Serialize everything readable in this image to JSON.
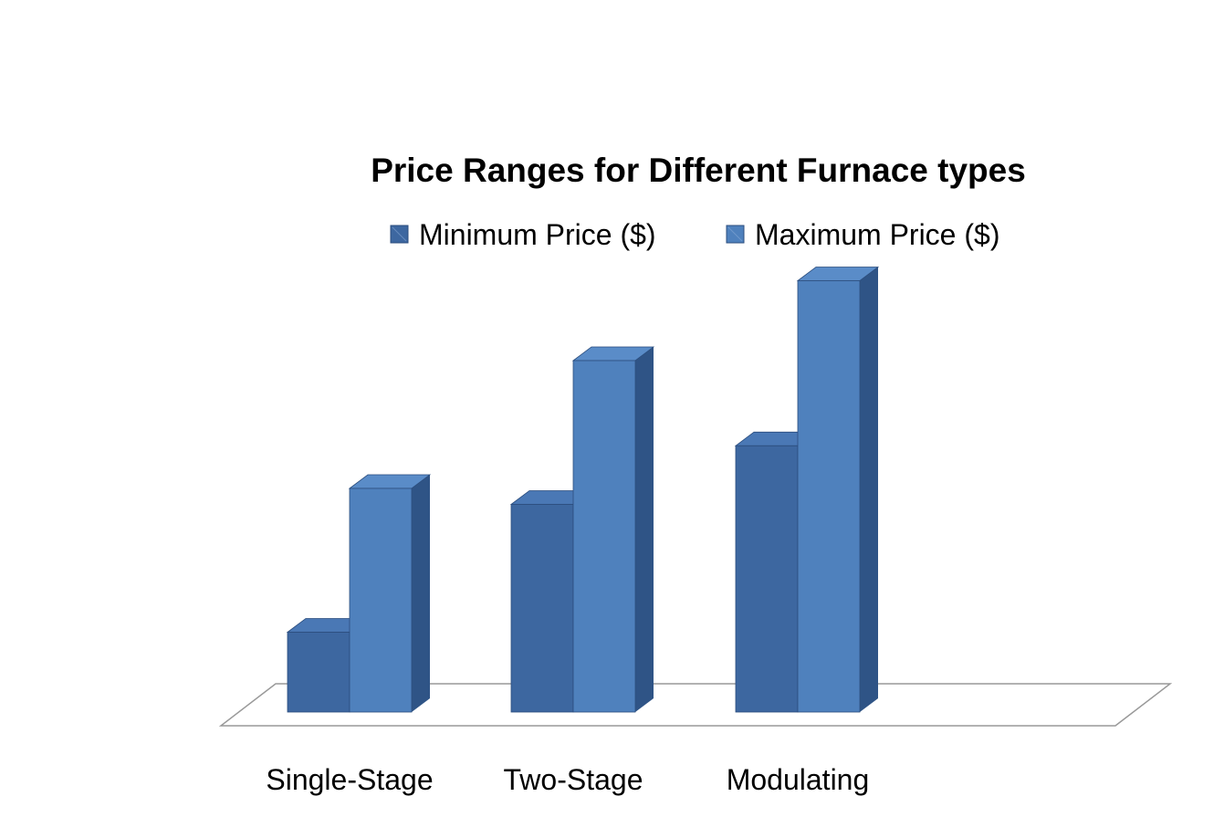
{
  "chart_data": {
    "type": "bar",
    "title": "Price Ranges for Different Furnace types",
    "categories": [
      "Single-Stage",
      "Two-Stage",
      "Modulating"
    ],
    "series": [
      {
        "name": "Minimum Price ($)",
        "values": [
          1500,
          3900,
          5000
        ]
      },
      {
        "name": "Maximum Price ($)",
        "values": [
          4200,
          6600,
          8100
        ]
      }
    ],
    "ylim": [
      0,
      9000
    ],
    "grid": false,
    "legend_position": "top",
    "three_d": true,
    "colors": {
      "min_front": "#3d67a0",
      "min_top": "#4a78b5",
      "min_side": "#2c4e7e",
      "max_front": "#4f81bd",
      "max_top": "#5a8cc8",
      "max_side": "#2f5486",
      "floor_stroke": "#999999",
      "text": "#000000"
    }
  }
}
